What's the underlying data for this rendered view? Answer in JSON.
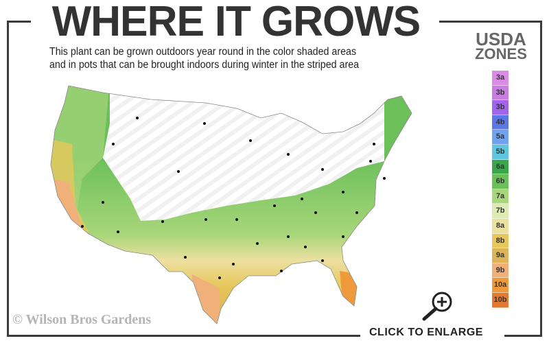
{
  "header": {
    "title": "WHERE IT GROWS",
    "subtitle_line1": "This plant can be grown outdoors year round in the color shaded areas",
    "subtitle_line2": "and in pots that can be brought indoors during winter in the striped area"
  },
  "legend": {
    "title_line1": "USDA",
    "title_line2": "ZONES",
    "zones": [
      {
        "label": "3a",
        "color": "#d98be6"
      },
      {
        "label": "3b",
        "color": "#c77ee0"
      },
      {
        "label": "3b",
        "color": "#a065ec"
      },
      {
        "label": "4b",
        "color": "#5b77e6"
      },
      {
        "label": "5a",
        "color": "#6fa3f0"
      },
      {
        "label": "5b",
        "color": "#5ec7e0"
      },
      {
        "label": "6a",
        "color": "#3aa64a"
      },
      {
        "label": "6b",
        "color": "#6cc05a"
      },
      {
        "label": "7a",
        "color": "#a8d67a"
      },
      {
        "label": "7b",
        "color": "#dceab4"
      },
      {
        "label": "8a",
        "color": "#ece0a0"
      },
      {
        "label": "8b",
        "color": "#e6c75a"
      },
      {
        "label": "9a",
        "color": "#dcb45a"
      },
      {
        "label": "9b",
        "color": "#f0b07a"
      },
      {
        "label": "10a",
        "color": "#ee9a3c"
      },
      {
        "label": "10b",
        "color": "#e07a30"
      }
    ]
  },
  "footer": {
    "copyright": "© Wilson Bros Gardens",
    "enlarge_label": "CLICK TO ENLARGE",
    "enlarge_icon": "magnifier-plus-icon"
  }
}
